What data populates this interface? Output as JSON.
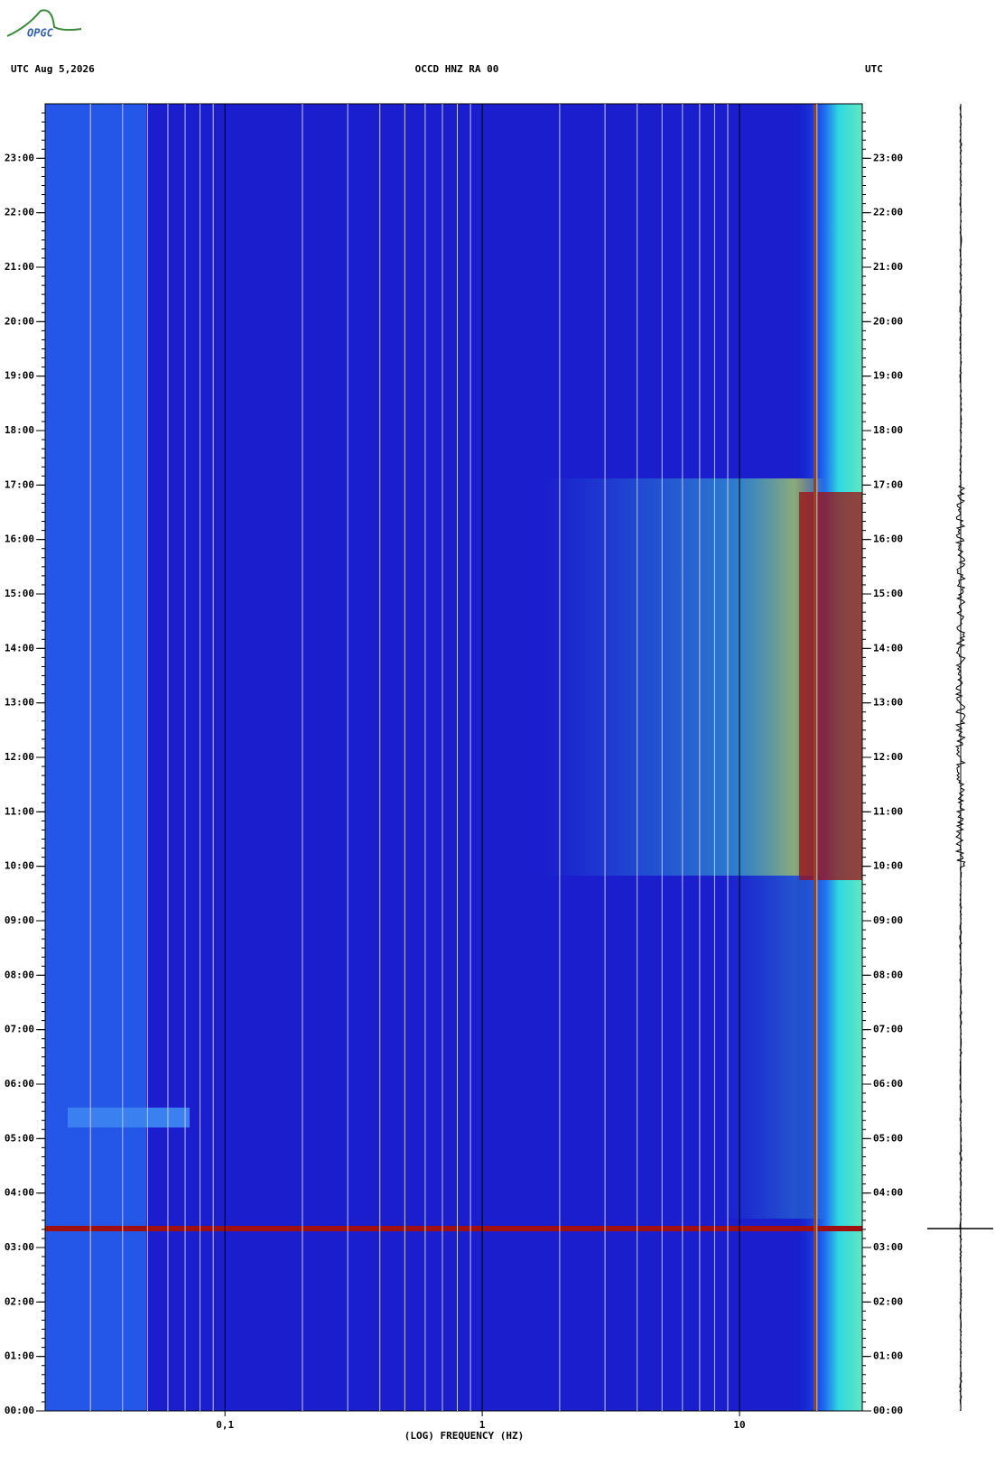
{
  "logo": "OPGC",
  "chart_data": {
    "type": "spectrogram",
    "title_left": "UTC  Aug 5,2026",
    "title": "OCCD HNZ RA 00",
    "title_right": "UTC",
    "xlabel": "(LOG) FREQUENCY (HZ)",
    "xscale": "log",
    "xlim": [
      0.02,
      30
    ],
    "xticks": [
      {
        "value": 0.1,
        "label": "0,1"
      },
      1,
      10
    ],
    "xgrid": [
      0.03,
      0.04,
      0.05,
      0.06,
      0.07,
      0.08,
      0.09,
      0.2,
      0.3,
      0.4,
      0.5,
      0.6,
      0.7,
      0.8,
      0.9,
      2,
      3,
      4,
      5,
      6,
      7,
      8,
      9,
      20
    ],
    "ylim": [
      0,
      24
    ],
    "yticks": [
      {
        "value": 0,
        "label": "00:00"
      },
      {
        "value": 1,
        "label": "01:00"
      },
      {
        "value": 2,
        "label": "02:00"
      },
      {
        "value": 3,
        "label": "03:00"
      },
      {
        "value": 4,
        "label": "04:00"
      },
      {
        "value": 5,
        "label": "05:00"
      },
      {
        "value": 6,
        "label": "06:00"
      },
      {
        "value": 7,
        "label": "07:00"
      },
      {
        "value": 8,
        "label": "08:00"
      },
      {
        "value": 9,
        "label": "09:00"
      },
      {
        "value": 10,
        "label": "10:00"
      },
      {
        "value": 11,
        "label": "11:00"
      },
      {
        "value": 12,
        "label": "12:00"
      },
      {
        "value": 13,
        "label": "13:00"
      },
      {
        "value": 14,
        "label": "14:00"
      },
      {
        "value": 15,
        "label": "15:00"
      },
      {
        "value": 16,
        "label": "16:00"
      },
      {
        "value": 17,
        "label": "17:00"
      },
      {
        "value": 18,
        "label": "18:00"
      },
      {
        "value": 19,
        "label": "19:00"
      },
      {
        "value": 20,
        "label": "20:00"
      },
      {
        "value": 21,
        "label": "21:00"
      },
      {
        "value": 22,
        "label": "22:00"
      },
      {
        "value": 23,
        "label": "23:00"
      }
    ]
  }
}
